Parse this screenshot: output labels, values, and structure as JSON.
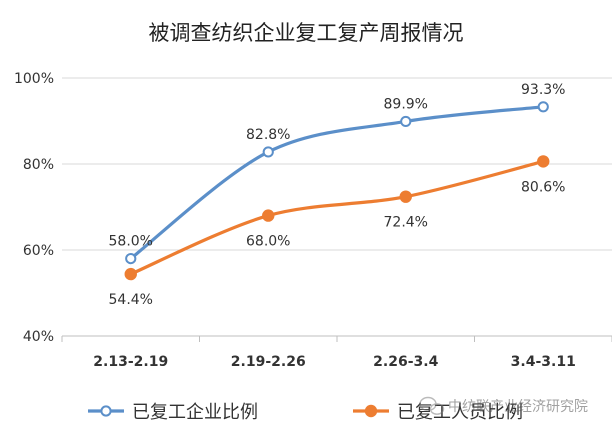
{
  "chart_data": {
    "type": "line",
    "title": "被调查纺织企业复工复产周报情况",
    "categories": [
      "2.13-2.19",
      "2.19-2.26",
      "2.26-3.4",
      "3.4-3.11"
    ],
    "ylim": [
      40,
      100
    ],
    "yticks": [
      "40%",
      "60%",
      "80%",
      "100%"
    ],
    "ytick_values": [
      40,
      60,
      80,
      100
    ],
    "grid": true,
    "legend_position": "bottom",
    "series": [
      {
        "name": "已复工企业比例",
        "values": [
          58.0,
          82.8,
          89.9,
          93.3
        ],
        "labels": [
          "58.0%",
          "82.8%",
          "89.9%",
          "93.3%"
        ],
        "color": "#5B8FC9",
        "marker": "hollow-circle"
      },
      {
        "name": "已复工人员比例",
        "values": [
          54.4,
          68.0,
          72.4,
          80.6
        ],
        "labels": [
          "54.4%",
          "68.0%",
          "72.4%",
          "80.6%"
        ],
        "color": "#ED7D31",
        "marker": "filled-circle"
      }
    ]
  },
  "watermark": "中纺联产业经济研究院"
}
